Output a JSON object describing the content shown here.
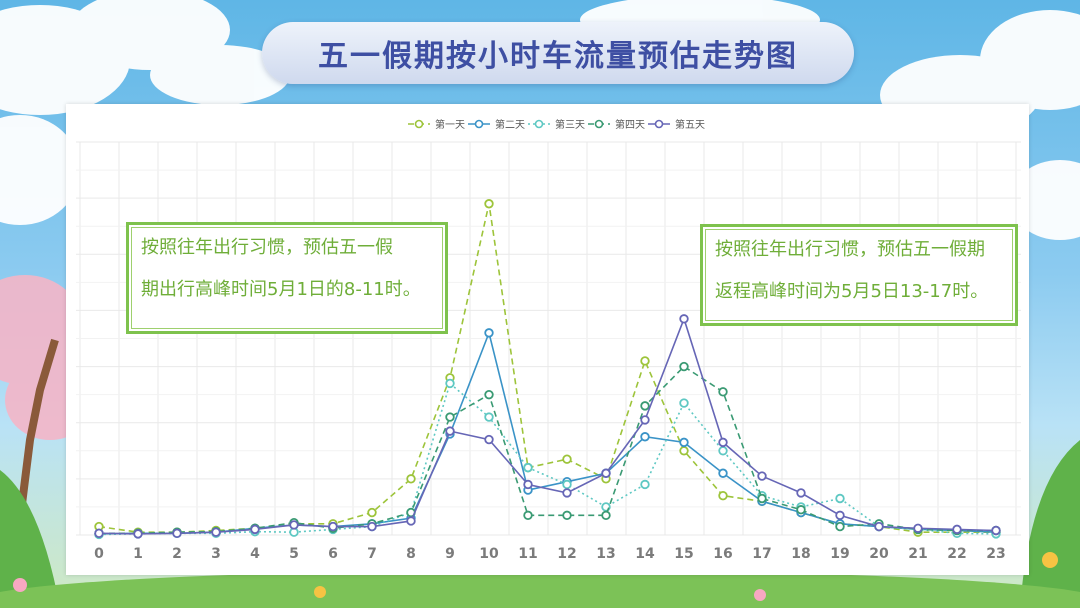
{
  "title": "五一假期按小时车流量预估走势图",
  "callouts": {
    "left": [
      "按照往年出行习惯，预估五一假",
      "期出行高峰时间5月1日的8-11时。"
    ],
    "right": [
      "按照往年出行习惯，预估五一假期",
      "返程高峰时间为5月5日13-17时。"
    ]
  },
  "colors": {
    "day1": "#9dc43a",
    "day2": "#3a93c7",
    "day3": "#5ec8c3",
    "day4": "#3a9a73",
    "day5": "#6666b6",
    "grid": "#e9e9e9",
    "callout_border": "#7ec24d",
    "callout_text": "#6fae39",
    "title_text": "#3e4fa3"
  },
  "chart_data": {
    "type": "line",
    "title": "",
    "xlabel": "",
    "ylabel": "",
    "legend_position": "top-center",
    "grid": true,
    "ylim": [
      0,
      70
    ],
    "x": [
      0,
      1,
      2,
      3,
      4,
      5,
      6,
      7,
      8,
      9,
      10,
      11,
      12,
      13,
      14,
      15,
      16,
      17,
      18,
      19,
      20,
      21,
      22,
      23
    ],
    "series": [
      {
        "name": "第一天",
        "style": "dashed",
        "values": [
          1.5,
          0.5,
          0.5,
          0.8,
          1.2,
          2,
          2,
          4,
          10,
          28,
          59,
          12,
          13.5,
          10,
          31,
          15,
          7,
          6,
          4,
          2,
          1.5,
          0.5,
          0.5,
          0.5
        ]
      },
      {
        "name": "第二天",
        "style": "solid",
        "values": [
          0.2,
          0.3,
          0.3,
          0.5,
          1.2,
          1.8,
          1.5,
          2,
          3,
          18,
          36,
          8,
          9.5,
          11,
          17.5,
          16.5,
          11,
          6,
          4,
          2,
          1.5,
          1,
          0.8,
          0.5
        ]
      },
      {
        "name": "第三天",
        "style": "dotted",
        "values": [
          0.1,
          0.2,
          0.3,
          0.3,
          0.6,
          0.5,
          1,
          1.5,
          4,
          27,
          21,
          12,
          9,
          5,
          9,
          23.5,
          15,
          7,
          5,
          6.5,
          1.5,
          1,
          0.3,
          0.2
        ]
      },
      {
        "name": "第四天",
        "style": "dashed",
        "values": [
          0.3,
          0.3,
          0.5,
          0.6,
          1.2,
          2.2,
          1.2,
          2,
          4,
          21,
          25,
          3.5,
          3.5,
          3.5,
          23,
          30,
          25.5,
          6.5,
          4.5,
          1.5,
          2,
          1,
          0.8,
          0.8
        ]
      },
      {
        "name": "第五天",
        "style": "solid",
        "values": [
          0.3,
          0.2,
          0.3,
          0.5,
          1,
          1.8,
          1.5,
          1.5,
          2.5,
          18.5,
          17,
          9,
          7.5,
          11,
          20.5,
          38.5,
          16.5,
          10.5,
          7.5,
          3.5,
          1.5,
          1.2,
          1,
          0.8
        ]
      }
    ]
  }
}
